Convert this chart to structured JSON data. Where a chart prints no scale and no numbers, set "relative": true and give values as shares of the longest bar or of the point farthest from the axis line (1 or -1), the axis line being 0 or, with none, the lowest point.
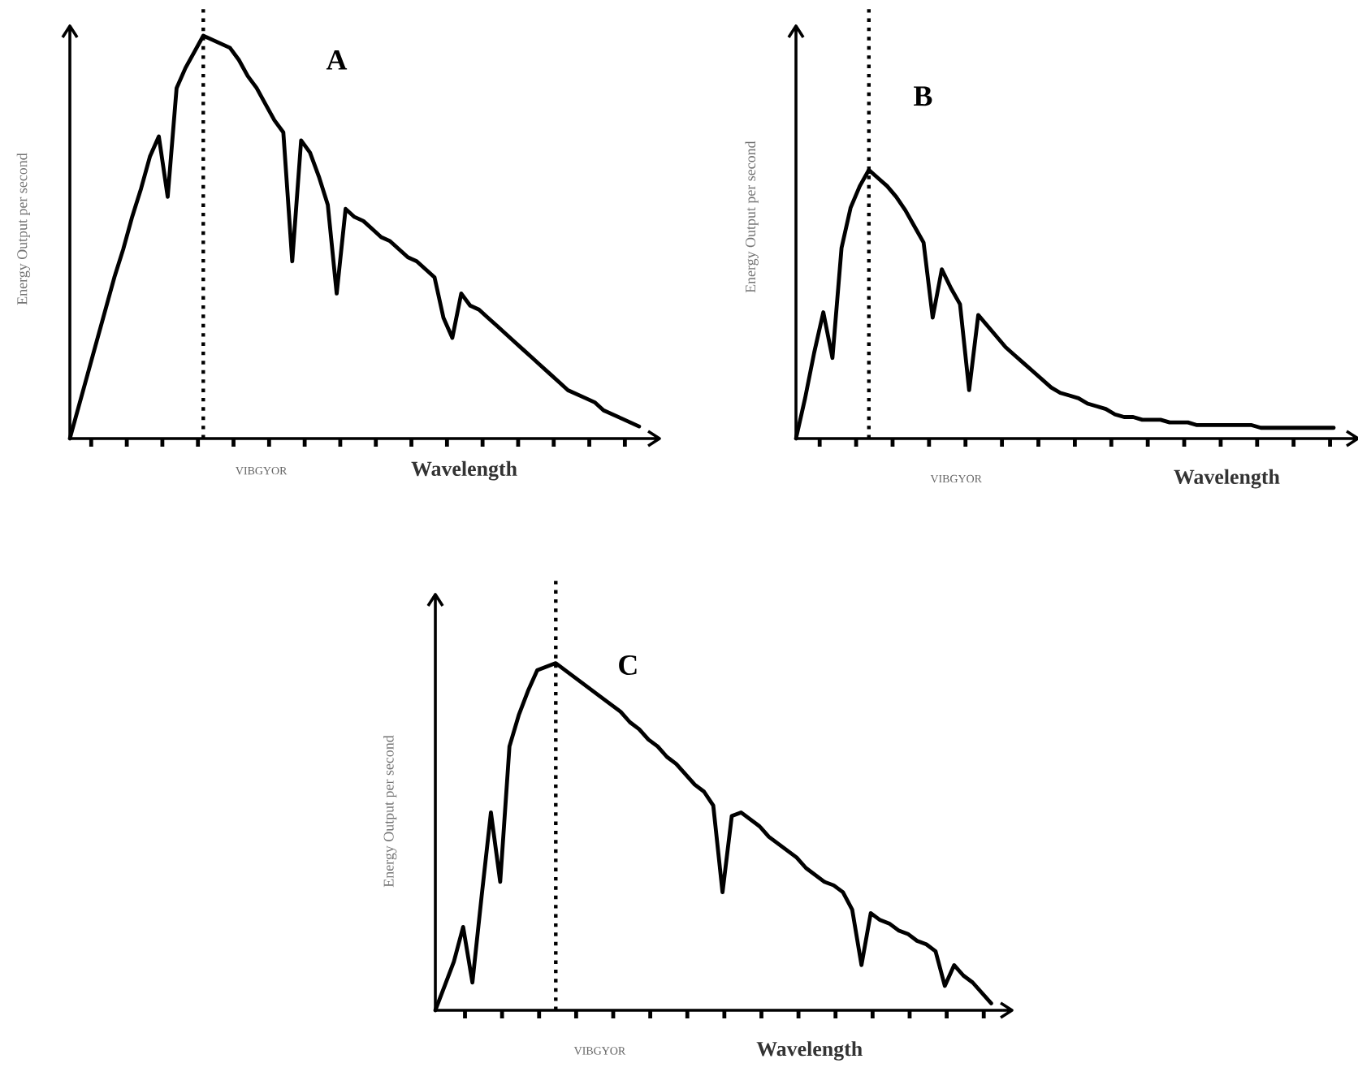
{
  "chart_data": [
    {
      "type": "line",
      "title": "A",
      "xlabel": "Wavelength",
      "ylabel": "Energy Output per second",
      "annotations": [
        "VIBGYOR"
      ],
      "relative": true,
      "categories": [
        null,
        null,
        null,
        null,
        null,
        null,
        null,
        null,
        null,
        null,
        null,
        null,
        null,
        null,
        null,
        null,
        null,
        null,
        null,
        null,
        null,
        null,
        null,
        null,
        null,
        null,
        null,
        null,
        null,
        null,
        null,
        null,
        null,
        null,
        null,
        null,
        null,
        null,
        null,
        null,
        null,
        null,
        null,
        null,
        null,
        null,
        null,
        null,
        null,
        null,
        null,
        null,
        null,
        null,
        null,
        null,
        null,
        null,
        null,
        null,
        null,
        null,
        null,
        null,
        null
      ],
      "series": [
        {
          "color": "#000000",
          "values": [
            0,
            0.08,
            0.16,
            0.24,
            0.32,
            0.4,
            0.47,
            0.55,
            0.62,
            0.7,
            0.75,
            0.6,
            0.87,
            0.92,
            0.96,
            1.0,
            0.99,
            0.98,
            0.97,
            0.94,
            0.9,
            0.87,
            0.83,
            0.79,
            0.76,
            0.44,
            0.74,
            0.71,
            0.65,
            0.58,
            0.36,
            0.57,
            0.55,
            0.54,
            0.52,
            0.5,
            0.49,
            0.47,
            0.45,
            0.44,
            0.42,
            0.4,
            0.3,
            0.25,
            0.36,
            0.33,
            0.32,
            0.3,
            0.28,
            0.26,
            0.24,
            0.22,
            0.2,
            0.18,
            0.16,
            0.14,
            0.12,
            0.11,
            0.1,
            0.09,
            0.07,
            0.06,
            0.05,
            0.04,
            0.03
          ]
        }
      ]
    },
    {
      "type": "line",
      "title": "B",
      "xlabel": "Wavelength",
      "ylabel": "Energy Output per second",
      "annotations": [
        "VIBGYOR"
      ],
      "relative": true,
      "categories": [
        null,
        null,
        null,
        null,
        null,
        null,
        null,
        null,
        null,
        null,
        null,
        null,
        null,
        null,
        null,
        null,
        null,
        null,
        null,
        null,
        null,
        null,
        null,
        null,
        null,
        null,
        null,
        null,
        null,
        null,
        null,
        null,
        null,
        null,
        null,
        null,
        null,
        null,
        null,
        null,
        null,
        null,
        null,
        null,
        null,
        null,
        null,
        null,
        null,
        null,
        null,
        null,
        null,
        null,
        null,
        null,
        null,
        null,
        null,
        null
      ],
      "series": [
        {
          "color": "#000000",
          "values": [
            0,
            0.15,
            0.32,
            0.47,
            0.3,
            0.71,
            0.86,
            0.94,
            1.0,
            0.97,
            0.94,
            0.9,
            0.85,
            0.79,
            0.73,
            0.45,
            0.63,
            0.56,
            0.5,
            0.18,
            0.46,
            0.42,
            0.38,
            0.34,
            0.31,
            0.28,
            0.25,
            0.22,
            0.19,
            0.17,
            0.16,
            0.15,
            0.13,
            0.12,
            0.11,
            0.09,
            0.08,
            0.08,
            0.07,
            0.07,
            0.07,
            0.06,
            0.06,
            0.06,
            0.05,
            0.05,
            0.05,
            0.05,
            0.05,
            0.05,
            0.05,
            0.04,
            0.04,
            0.04,
            0.04,
            0.04,
            0.04,
            0.04,
            0.04,
            0.04
          ]
        }
      ]
    },
    {
      "type": "line",
      "title": "C",
      "xlabel": "Wavelength",
      "ylabel": "Energy Output per second",
      "annotations": [
        "VIBGYOR"
      ],
      "relative": true,
      "categories": [
        null,
        null,
        null,
        null,
        null,
        null,
        null,
        null,
        null,
        null,
        null,
        null,
        null,
        null,
        null,
        null,
        null,
        null,
        null,
        null,
        null,
        null,
        null,
        null,
        null,
        null,
        null,
        null,
        null,
        null,
        null,
        null,
        null,
        null,
        null,
        null,
        null,
        null,
        null,
        null,
        null,
        null,
        null,
        null,
        null,
        null,
        null,
        null,
        null,
        null,
        null,
        null,
        null,
        null,
        null,
        null,
        null,
        null,
        null,
        null,
        null
      ],
      "series": [
        {
          "color": "#000000",
          "values": [
            0,
            0.07,
            0.14,
            0.24,
            0.08,
            0.33,
            0.57,
            0.37,
            0.76,
            0.85,
            0.92,
            0.98,
            0.99,
            1.0,
            0.98,
            0.96,
            0.94,
            0.92,
            0.9,
            0.88,
            0.86,
            0.83,
            0.81,
            0.78,
            0.76,
            0.73,
            0.71,
            0.68,
            0.65,
            0.63,
            0.59,
            0.34,
            0.56,
            0.57,
            0.55,
            0.53,
            0.5,
            0.48,
            0.46,
            0.44,
            0.41,
            0.39,
            0.37,
            0.36,
            0.34,
            0.29,
            0.13,
            0.28,
            0.26,
            0.25,
            0.23,
            0.22,
            0.2,
            0.19,
            0.17,
            0.07,
            0.13,
            0.1,
            0.08,
            0.05,
            0.02
          ]
        }
      ]
    }
  ]
}
